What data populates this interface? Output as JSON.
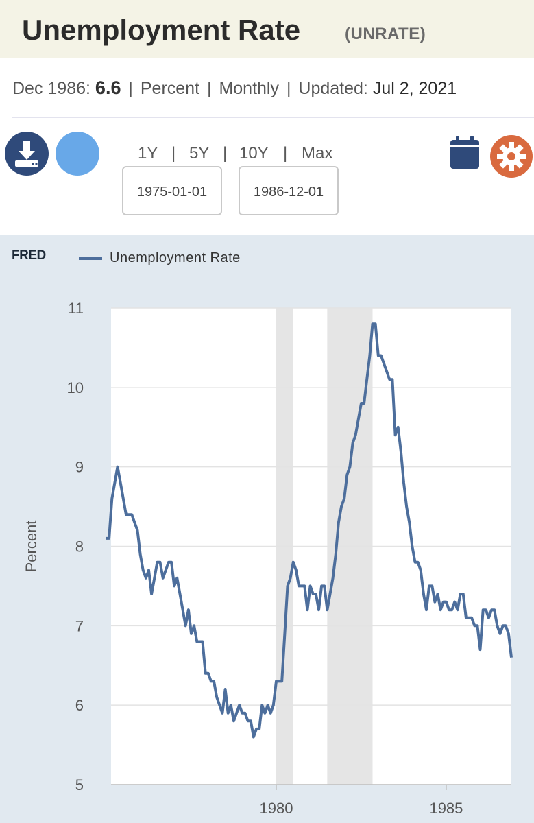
{
  "header": {
    "title": "Unemployment Rate",
    "series_code": "(UNRATE)"
  },
  "meta": {
    "period": "Dec 1986:",
    "value": "6.6",
    "units": "Percent",
    "frequency": "Monthly",
    "updated_label": "Updated:",
    "updated_date": "Jul 2, 2021",
    "separator": "|"
  },
  "toolbar": {
    "download_icon": "download-icon",
    "share_icon": "share-icon",
    "calendar_icon": "calendar-icon",
    "settings_icon": "gear-icon",
    "ranges": [
      "1Y",
      "5Y",
      "10Y",
      "Max"
    ],
    "start_date": "1975-01-01",
    "end_date": "1986-12-01"
  },
  "legend": {
    "logo": "FRED",
    "series_name": "Unemployment Rate",
    "series_color": "#4d6e9c"
  },
  "chart_data": {
    "type": "line",
    "ylabel": "Percent",
    "ylim": [
      5,
      11
    ],
    "yticks": [
      "5",
      "6",
      "7",
      "8",
      "9",
      "10",
      "11"
    ],
    "xticks": [
      "1980",
      "1985"
    ],
    "x_range": [
      "1975-01",
      "1986-12"
    ],
    "grid": true,
    "recessions": [
      {
        "start": "1980-01",
        "end": "1980-07"
      },
      {
        "start": "1981-07",
        "end": "1982-11"
      }
    ],
    "series": [
      {
        "name": "Unemployment Rate",
        "color": "#4d6e9c",
        "start": "1975-01",
        "values": [
          8.1,
          8.1,
          8.6,
          8.8,
          9.0,
          8.8,
          8.6,
          8.4,
          8.4,
          8.4,
          8.3,
          8.2,
          7.9,
          7.7,
          7.6,
          7.7,
          7.4,
          7.6,
          7.8,
          7.8,
          7.6,
          7.7,
          7.8,
          7.8,
          7.5,
          7.6,
          7.4,
          7.2,
          7.0,
          7.2,
          6.9,
          7.0,
          6.8,
          6.8,
          6.8,
          6.4,
          6.4,
          6.3,
          6.3,
          6.1,
          6.0,
          5.9,
          6.2,
          5.9,
          6.0,
          5.8,
          5.9,
          6.0,
          5.9,
          5.9,
          5.8,
          5.8,
          5.6,
          5.7,
          5.7,
          6.0,
          5.9,
          6.0,
          5.9,
          6.0,
          6.3,
          6.3,
          6.3,
          6.9,
          7.5,
          7.6,
          7.8,
          7.7,
          7.5,
          7.5,
          7.5,
          7.2,
          7.5,
          7.4,
          7.4,
          7.2,
          7.5,
          7.5,
          7.2,
          7.4,
          7.6,
          7.9,
          8.3,
          8.5,
          8.6,
          8.9,
          9.0,
          9.3,
          9.4,
          9.6,
          9.8,
          9.8,
          10.1,
          10.4,
          10.8,
          10.8,
          10.4,
          10.4,
          10.3,
          10.2,
          10.1,
          10.1,
          9.4,
          9.5,
          9.2,
          8.8,
          8.5,
          8.3,
          8.0,
          7.8,
          7.8,
          7.7,
          7.4,
          7.2,
          7.5,
          7.5,
          7.3,
          7.4,
          7.2,
          7.3,
          7.3,
          7.2,
          7.2,
          7.3,
          7.2,
          7.4,
          7.4,
          7.1,
          7.1,
          7.1,
          7.0,
          7.0,
          6.7,
          7.2,
          7.2,
          7.1,
          7.2,
          7.2,
          7.0,
          6.9,
          7.0,
          7.0,
          6.9,
          6.6
        ]
      }
    ]
  }
}
